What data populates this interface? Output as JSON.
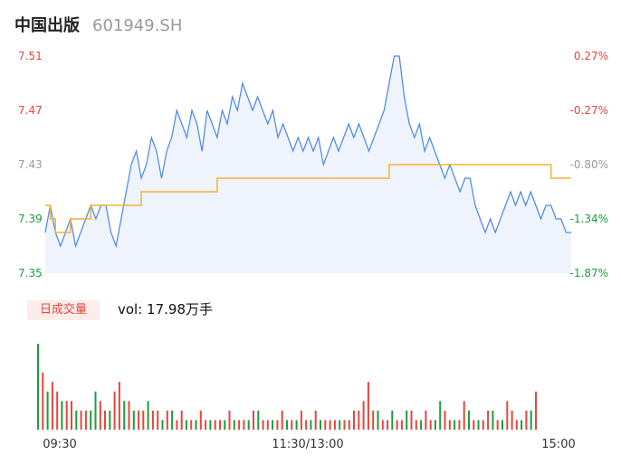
{
  "header": {
    "name": "中国出版",
    "code": "601949.SH"
  },
  "volume_panel": {
    "tag": "日成交量",
    "label": "vol: 17.98万手"
  },
  "colors": {
    "up": "#e8453c",
    "down": "#1a9e3f",
    "price": "#4a86e8",
    "avg": "#f2b233",
    "neutral": "#999999"
  },
  "chart_data": [
    {
      "type": "line",
      "title": "",
      "ylim": [
        7.35,
        7.51
      ],
      "y_ticks": [
        "7.51",
        "7.47",
        "7.43",
        "7.39",
        "7.35"
      ],
      "pct_ticks": [
        "0.27%",
        "-0.27%",
        "-0.80%",
        "-1.34%",
        "-1.87%"
      ],
      "x_ticks": [
        "09:30",
        "11:30/13:00",
        "15:00"
      ],
      "series": [
        {
          "values": [
            7.38,
            7.4,
            7.38,
            7.37,
            7.38,
            7.39,
            7.37,
            7.38,
            7.39,
            7.4,
            7.39,
            7.4,
            7.4,
            7.38,
            7.37,
            7.39,
            7.41,
            7.43,
            7.44,
            7.42,
            7.43,
            7.45,
            7.44,
            7.42,
            7.44,
            7.45,
            7.47,
            7.46,
            7.45,
            7.47,
            7.46,
            7.44,
            7.47,
            7.46,
            7.45,
            7.47,
            7.46,
            7.48,
            7.47,
            7.49,
            7.48,
            7.47,
            7.48,
            7.47,
            7.46,
            7.47,
            7.45,
            7.46,
            7.45,
            7.44,
            7.45,
            7.44,
            7.45,
            7.44,
            7.45,
            7.43,
            7.44,
            7.45,
            7.44,
            7.45,
            7.46,
            7.45,
            7.46,
            7.45,
            7.44,
            7.45,
            7.46,
            7.47,
            7.49,
            7.51,
            7.51,
            7.48,
            7.46,
            7.45,
            7.46,
            7.44,
            7.45,
            7.44,
            7.43,
            7.42,
            7.43,
            7.42,
            7.41,
            7.42,
            7.42,
            7.4,
            7.39,
            7.38,
            7.39,
            7.38,
            7.39,
            7.4,
            7.41,
            7.4,
            7.41,
            7.4,
            7.41,
            7.4,
            7.39,
            7.4,
            7.4,
            7.39,
            7.39,
            7.38,
            7.38
          ]
        },
        {
          "values": [
            7.4,
            7.39,
            7.38,
            7.38,
            7.38,
            7.39,
            7.39,
            7.39,
            7.39,
            7.4,
            7.4,
            7.4,
            7.4,
            7.4,
            7.4,
            7.4,
            7.4,
            7.4,
            7.4,
            7.41,
            7.41,
            7.41,
            7.41,
            7.41,
            7.41,
            7.41,
            7.41,
            7.41,
            7.41,
            7.41,
            7.41,
            7.41,
            7.41,
            7.41,
            7.42,
            7.42,
            7.42,
            7.42,
            7.42,
            7.42,
            7.42,
            7.42,
            7.42,
            7.42,
            7.42,
            7.42,
            7.42,
            7.42,
            7.42,
            7.42,
            7.42,
            7.42,
            7.42,
            7.42,
            7.42,
            7.42,
            7.42,
            7.42,
            7.42,
            7.42,
            7.42,
            7.42,
            7.42,
            7.42,
            7.42,
            7.42,
            7.42,
            7.42,
            7.43,
            7.43,
            7.43,
            7.43,
            7.43,
            7.43,
            7.43,
            7.43,
            7.43,
            7.43,
            7.43,
            7.43,
            7.43,
            7.43,
            7.43,
            7.43,
            7.43,
            7.43,
            7.43,
            7.43,
            7.43,
            7.43,
            7.43,
            7.43,
            7.43,
            7.43,
            7.43,
            7.43,
            7.43,
            7.43,
            7.43,
            7.43,
            7.42,
            7.42,
            7.42,
            7.42,
            7.42
          ]
        }
      ]
    },
    {
      "type": "bar",
      "title": "",
      "series": [
        {
          "values": [
            9,
            6,
            4,
            5,
            4,
            3,
            3,
            3,
            2,
            2,
            2,
            2,
            4,
            3,
            2,
            2,
            4,
            5,
            3,
            3,
            2,
            2,
            2,
            3,
            2,
            2,
            1,
            2,
            2,
            1,
            2,
            1,
            1,
            1,
            2,
            1,
            1,
            1,
            1,
            1,
            2,
            1,
            1,
            1,
            1,
            2,
            2,
            1,
            1,
            1,
            1,
            2,
            1,
            1,
            1,
            2,
            1,
            1,
            2,
            1,
            1,
            1,
            1,
            1,
            1,
            1,
            2,
            2,
            3,
            5,
            2,
            2,
            1,
            1,
            2,
            1,
            1,
            2,
            2,
            1,
            1,
            2,
            1,
            1,
            3,
            2,
            1,
            1,
            1,
            3,
            2,
            1,
            1,
            1,
            2,
            2,
            1,
            1,
            3,
            2,
            1,
            1,
            2,
            2,
            4
          ]
        }
      ],
      "up_down": [
        "d",
        "u",
        "d",
        "u",
        "u",
        "d",
        "u",
        "u",
        "d",
        "u",
        "u",
        "d",
        "d",
        "u",
        "u",
        "d",
        "u",
        "u",
        "d",
        "u",
        "d",
        "u",
        "u",
        "d",
        "u",
        "u",
        "d",
        "u",
        "d",
        "u",
        "u",
        "d",
        "u",
        "d",
        "u",
        "u",
        "d",
        "u",
        "u",
        "d",
        "u",
        "d",
        "u",
        "u",
        "d",
        "u",
        "d",
        "u",
        "u",
        "d",
        "u",
        "u",
        "d",
        "u",
        "d",
        "u",
        "u",
        "d",
        "u",
        "d",
        "u",
        "u",
        "u",
        "d",
        "u",
        "u",
        "u",
        "u",
        "u",
        "u",
        "u",
        "d",
        "u",
        "u",
        "d",
        "u",
        "u",
        "d",
        "u",
        "u",
        "d",
        "u",
        "u",
        "d",
        "d",
        "u",
        "u",
        "d",
        "u",
        "u",
        "d",
        "u",
        "d",
        "u",
        "u",
        "d",
        "u",
        "d",
        "u",
        "u",
        "u",
        "d",
        "u",
        "d",
        "u"
      ]
    }
  ]
}
